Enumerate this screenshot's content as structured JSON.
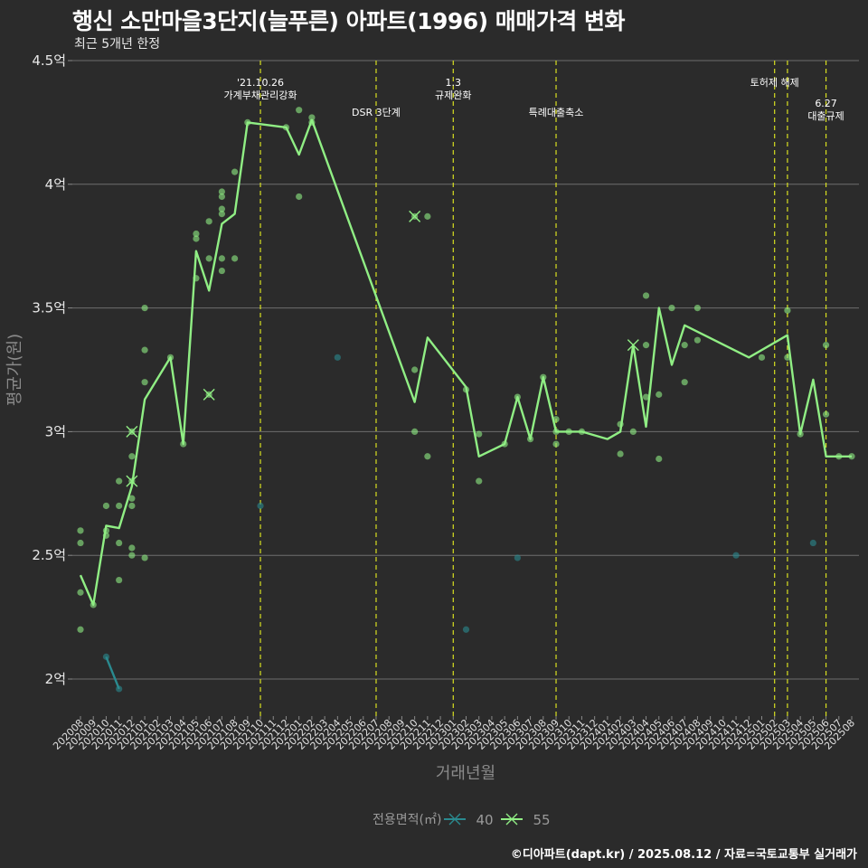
{
  "title": "행신 소만마을3단지(늘푸른) 아파트(1996) 매매가격 변화",
  "subtitle": "최근 5개년 한정",
  "footer": "©디아파트(dapt.kr) / 2025.08.12 / 자료=국토교통부 실거래가",
  "chart_data": {
    "type": "line",
    "xlabel": "거래년월",
    "ylabel": "평균가(원)",
    "ylim": [
      1.85,
      4.5
    ],
    "y_ticks": [
      {
        "value": 2.0,
        "label": "2억"
      },
      {
        "value": 2.5,
        "label": "2.5억"
      },
      {
        "value": 3.0,
        "label": "3억"
      },
      {
        "value": 3.5,
        "label": "3.5억"
      },
      {
        "value": 4.0,
        "label": "4억"
      },
      {
        "value": 4.5,
        "label": "4.5억"
      }
    ],
    "x_categories": [
      "202008",
      "202009",
      "202010",
      "202011",
      "202012",
      "202101",
      "202102",
      "202103",
      "202104",
      "202105",
      "202106",
      "202107",
      "202108",
      "202109",
      "202110",
      "202111",
      "202112",
      "202201",
      "202202",
      "202203",
      "202204",
      "202205",
      "202206",
      "202207",
      "202208",
      "202209",
      "202210",
      "202211",
      "202212",
      "202301",
      "202302",
      "202303",
      "202304",
      "202305",
      "202306",
      "202307",
      "202308",
      "202309",
      "202310",
      "202311",
      "202312",
      "202401",
      "202402",
      "202403",
      "202404",
      "202405",
      "202406",
      "202407",
      "202408",
      "202409",
      "202410",
      "202411",
      "202412",
      "202501",
      "202502",
      "202503",
      "202504",
      "202505",
      "202506",
      "202507",
      "202508"
    ],
    "legend": {
      "title": "전용면적(㎡)",
      "position": "bottom",
      "items": [
        "40",
        "55"
      ]
    },
    "series": [
      {
        "name": "40",
        "color": "#2a8a8f",
        "line": [
          [
            202010,
            2.09
          ],
          [
            202011,
            1.96
          ]
        ],
        "points": [
          [
            202010,
            2.09
          ],
          [
            202011,
            1.96
          ],
          [
            202110,
            2.7
          ],
          [
            202204,
            3.3
          ],
          [
            202302,
            2.2
          ],
          [
            202306,
            2.49
          ],
          [
            202411,
            2.5
          ],
          [
            202505,
            2.55
          ]
        ]
      },
      {
        "name": "55",
        "color": "#90ee84",
        "line": [
          [
            202008,
            2.42
          ],
          [
            202009,
            2.3
          ],
          [
            202010,
            2.62
          ],
          [
            202011,
            2.61
          ],
          [
            202012,
            2.78
          ],
          [
            202101,
            3.13
          ],
          [
            202103,
            3.3
          ],
          [
            202104,
            2.95
          ],
          [
            202105,
            3.73
          ],
          [
            202106,
            3.57
          ],
          [
            202107,
            3.84
          ],
          [
            202108,
            3.88
          ],
          [
            202109,
            4.25
          ],
          [
            202112,
            4.23
          ],
          [
            202201,
            4.12
          ],
          [
            202202,
            4.26
          ],
          [
            202210,
            3.12
          ],
          [
            202211,
            3.38
          ],
          [
            202302,
            3.18
          ],
          [
            202303,
            2.9
          ],
          [
            202305,
            2.95
          ],
          [
            202306,
            3.14
          ],
          [
            202307,
            2.97
          ],
          [
            202308,
            3.22
          ],
          [
            202309,
            3.0
          ],
          [
            202310,
            3.0
          ],
          [
            202311,
            3.0
          ],
          [
            202401,
            2.97
          ],
          [
            202402,
            3.0
          ],
          [
            202403,
            3.35
          ],
          [
            202404,
            3.02
          ],
          [
            202405,
            3.5
          ],
          [
            202406,
            3.27
          ],
          [
            202407,
            3.43
          ],
          [
            202412,
            3.3
          ],
          [
            202503,
            3.39
          ],
          [
            202504,
            2.99
          ],
          [
            202505,
            3.21
          ],
          [
            202506,
            2.9
          ],
          [
            202507,
            2.9
          ],
          [
            202508,
            2.9
          ]
        ],
        "points": [
          [
            202008,
            2.6
          ],
          [
            202008,
            2.55
          ],
          [
            202008,
            2.35
          ],
          [
            202008,
            2.2
          ],
          [
            202009,
            2.3
          ],
          [
            202010,
            2.7
          ],
          [
            202010,
            2.6
          ],
          [
            202010,
            2.58
          ],
          [
            202011,
            2.8
          ],
          [
            202011,
            2.7
          ],
          [
            202011,
            2.55
          ],
          [
            202011,
            2.4
          ],
          [
            202012,
            3.0
          ],
          [
            202012,
            2.9
          ],
          [
            202012,
            2.8
          ],
          [
            202012,
            2.73
          ],
          [
            202012,
            2.7
          ],
          [
            202012,
            2.53
          ],
          [
            202012,
            2.5
          ],
          [
            202101,
            3.5
          ],
          [
            202101,
            3.33
          ],
          [
            202101,
            3.2
          ],
          [
            202101,
            2.49
          ],
          [
            202103,
            3.3
          ],
          [
            202104,
            2.95
          ],
          [
            202105,
            3.8
          ],
          [
            202105,
            3.78
          ],
          [
            202105,
            3.62
          ],
          [
            202106,
            3.85
          ],
          [
            202106,
            3.7
          ],
          [
            202106,
            3.15
          ],
          [
            202107,
            3.97
          ],
          [
            202107,
            3.95
          ],
          [
            202107,
            3.9
          ],
          [
            202107,
            3.88
          ],
          [
            202107,
            3.7
          ],
          [
            202107,
            3.65
          ],
          [
            202108,
            4.05
          ],
          [
            202108,
            3.7
          ],
          [
            202109,
            4.25
          ],
          [
            202112,
            4.23
          ],
          [
            202201,
            4.3
          ],
          [
            202201,
            3.95
          ],
          [
            202202,
            4.27
          ],
          [
            202202,
            4.25
          ],
          [
            202210,
            3.87
          ],
          [
            202210,
            3.25
          ],
          [
            202210,
            3.0
          ],
          [
            202211,
            3.87
          ],
          [
            202211,
            2.9
          ],
          [
            202302,
            3.17
          ],
          [
            202303,
            2.99
          ],
          [
            202303,
            2.8
          ],
          [
            202305,
            2.95
          ],
          [
            202306,
            3.14
          ],
          [
            202307,
            2.97
          ],
          [
            202308,
            3.22
          ],
          [
            202309,
            3.05
          ],
          [
            202309,
            3.0
          ],
          [
            202309,
            2.95
          ],
          [
            202310,
            3.0
          ],
          [
            202311,
            3.0
          ],
          [
            202402,
            3.03
          ],
          [
            202402,
            2.91
          ],
          [
            202403,
            3.0
          ],
          [
            202404,
            3.55
          ],
          [
            202404,
            3.35
          ],
          [
            202404,
            3.14
          ],
          [
            202405,
            3.15
          ],
          [
            202405,
            2.89
          ],
          [
            202406,
            3.5
          ],
          [
            202407,
            3.35
          ],
          [
            202407,
            3.2
          ],
          [
            202408,
            3.5
          ],
          [
            202408,
            3.37
          ],
          [
            202501,
            3.3
          ],
          [
            202503,
            3.49
          ],
          [
            202503,
            3.3
          ],
          [
            202504,
            2.99
          ],
          [
            202506,
            3.35
          ],
          [
            202506,
            3.07
          ],
          [
            202507,
            2.9
          ],
          [
            202508,
            2.9
          ]
        ]
      }
    ],
    "cross_markers": [
      {
        "series": "55",
        "x": 202012,
        "y": 3.0
      },
      {
        "series": "55",
        "x": 202012,
        "y": 2.8
      },
      {
        "series": "55",
        "x": 202106,
        "y": 3.15
      },
      {
        "series": "55",
        "x": 202210,
        "y": 3.87
      },
      {
        "series": "55",
        "x": 202403,
        "y": 3.35
      }
    ],
    "annotations": [
      {
        "x": 202110,
        "lines": [
          "'21.10.26",
          "가계부채관리강화"
        ],
        "level": 1
      },
      {
        "x": 202207,
        "lines": [
          "DSR 3단계"
        ],
        "level": 2
      },
      {
        "x": 202301,
        "lines": [
          "1.3",
          "규제완화"
        ],
        "level": 1
      },
      {
        "x": 202309,
        "lines": [
          "특례대출축소"
        ],
        "level": 2
      },
      {
        "x": 202502,
        "lines": [
          "토허제 해제"
        ],
        "level": 1,
        "anchor": "mid"
      },
      {
        "x": 202503,
        "lines": [],
        "level": 1
      },
      {
        "x": 202506,
        "lines": [
          "6.27",
          "대출규제"
        ],
        "level": 3
      }
    ]
  }
}
